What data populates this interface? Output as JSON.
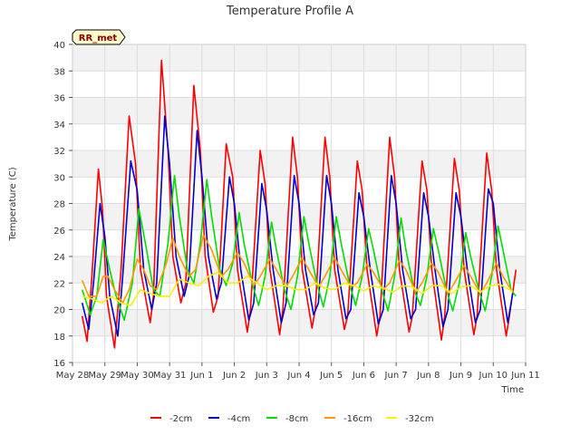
{
  "chart_data": {
    "type": "line",
    "title": "Temperature Profile A",
    "xlabel": "Time",
    "ylabel": "Temperature (C)",
    "badge": "RR_met",
    "ylim": [
      16,
      40
    ],
    "yticks": [
      16,
      18,
      20,
      22,
      24,
      26,
      28,
      30,
      32,
      34,
      36,
      38,
      40
    ],
    "xlim": [
      0,
      14
    ],
    "x_ticks": [
      {
        "x": 0,
        "label": "May 28"
      },
      {
        "x": 1,
        "label": "May 29"
      },
      {
        "x": 2,
        "label": "May 30"
      },
      {
        "x": 3,
        "label": "May 31"
      },
      {
        "x": 4,
        "label": "Jun 1"
      },
      {
        "x": 5,
        "label": "Jun 2"
      },
      {
        "x": 6,
        "label": "Jun 3"
      },
      {
        "x": 7,
        "label": "Jun 4"
      },
      {
        "x": 8,
        "label": "Jun 5"
      },
      {
        "x": 9,
        "label": "Jun 6"
      },
      {
        "x": 10,
        "label": "Jun 7"
      },
      {
        "x": 11,
        "label": "Jun 8"
      },
      {
        "x": 12,
        "label": "Jun 9"
      },
      {
        "x": 13,
        "label": "Jun 10"
      },
      {
        "x": 14,
        "label": "Jun 11"
      }
    ],
    "grid": true,
    "legend_position": "bottom",
    "series": [
      {
        "name": "-2cm",
        "color": "#ff0000",
        "x": [
          0.3,
          0.45,
          0.6,
          0.8,
          0.93,
          1.05,
          1.3,
          1.5,
          1.75,
          1.95,
          2.1,
          2.4,
          2.5,
          2.75,
          2.95,
          3.1,
          3.35,
          3.5,
          3.75,
          3.95,
          4.1,
          4.35,
          4.5,
          4.75,
          4.95,
          5.1,
          5.4,
          5.5,
          5.8,
          5.95,
          6.1,
          6.4,
          6.5,
          6.8,
          6.95,
          7.1,
          7.4,
          7.5,
          7.8,
          7.95,
          8.1,
          8.4,
          8.5,
          8.8,
          8.95,
          9.1,
          9.4,
          9.5,
          9.8,
          9.95,
          10.1,
          10.4,
          10.5,
          10.8,
          10.95,
          11.1,
          11.4,
          11.5,
          11.8,
          11.95,
          12.1,
          12.4,
          12.5,
          12.8,
          12.95,
          13.1,
          13.4,
          13.5,
          13.7,
          13.95,
          14.0
        ],
        "y": [
          19.5,
          17.6,
          22.5,
          30.6,
          27.5,
          21.0,
          17.1,
          23.0,
          34.6,
          31.0,
          23.0,
          19.0,
          21.0,
          38.8,
          32.0,
          24.0,
          20.5,
          22.0,
          36.9,
          32.0,
          24.0,
          19.8,
          21.0,
          32.5,
          30.0,
          23.0,
          18.3,
          20.0,
          32.0,
          29.5,
          23.0,
          18.1,
          20.0,
          33.0,
          30.0,
          23.0,
          18.6,
          20.0,
          33.0,
          30.0,
          23.0,
          18.5,
          19.5,
          31.2,
          29.0,
          23.0,
          18.0,
          19.5,
          33.0,
          30.0,
          23.0,
          18.3,
          19.5,
          31.2,
          29.0,
          23.0,
          17.7,
          19.5,
          31.4,
          29.0,
          23.0,
          18.1,
          19.5,
          31.8,
          29.0,
          23.0,
          18.0,
          19.5,
          23.0,
          null,
          null
        ]
      },
      {
        "name": "-4cm",
        "color": "#0000cc",
        "x": [
          0.3,
          0.5,
          0.65,
          0.85,
          1.0,
          1.15,
          1.4,
          1.55,
          1.8,
          2.0,
          2.2,
          2.45,
          2.6,
          2.85,
          3.0,
          3.2,
          3.45,
          3.6,
          3.85,
          4.0,
          4.2,
          4.45,
          4.6,
          4.85,
          5.0,
          5.2,
          5.45,
          5.6,
          5.85,
          6.0,
          6.2,
          6.45,
          6.6,
          6.85,
          7.0,
          7.2,
          7.45,
          7.6,
          7.85,
          8.0,
          8.2,
          8.45,
          8.6,
          8.85,
          9.0,
          9.2,
          9.45,
          9.6,
          9.85,
          10.0,
          10.2,
          10.45,
          10.6,
          10.85,
          11.0,
          11.2,
          11.45,
          11.6,
          11.85,
          12.0,
          12.2,
          12.45,
          12.6,
          12.85,
          13.0,
          13.2,
          13.45,
          13.6
        ],
        "y": [
          20.5,
          18.5,
          22.0,
          28.0,
          25.5,
          21.0,
          18.0,
          22.5,
          31.2,
          29.0,
          23.0,
          20.0,
          22.0,
          34.6,
          31.0,
          24.0,
          21.0,
          22.5,
          33.5,
          30.0,
          24.0,
          20.8,
          22.0,
          30.0,
          28.0,
          23.0,
          19.2,
          20.5,
          29.5,
          27.5,
          23.0,
          19.0,
          20.5,
          30.1,
          28.0,
          23.0,
          19.6,
          20.5,
          30.1,
          28.0,
          23.0,
          19.3,
          20.0,
          28.8,
          27.0,
          23.0,
          18.9,
          20.0,
          30.1,
          28.0,
          23.0,
          19.3,
          20.0,
          28.8,
          27.0,
          23.0,
          18.7,
          20.0,
          28.8,
          27.0,
          23.0,
          19.0,
          20.0,
          29.1,
          28.0,
          23.0,
          19.0,
          21.2
        ]
      },
      {
        "name": "-8cm",
        "color": "#00dd00",
        "x": [
          0.3,
          0.55,
          0.75,
          0.95,
          1.15,
          1.35,
          1.6,
          1.85,
          2.05,
          2.25,
          2.5,
          2.7,
          2.95,
          3.15,
          3.3,
          3.55,
          3.75,
          3.95,
          4.15,
          4.3,
          4.55,
          4.75,
          4.95,
          5.15,
          5.3,
          5.55,
          5.75,
          5.95,
          6.15,
          6.3,
          6.55,
          6.75,
          6.95,
          7.15,
          7.3,
          7.55,
          7.75,
          7.95,
          8.15,
          8.3,
          8.55,
          8.75,
          8.95,
          9.15,
          9.3,
          9.55,
          9.75,
          9.95,
          10.15,
          10.3,
          10.55,
          10.75,
          10.95,
          11.15,
          11.3,
          11.55,
          11.75,
          11.95,
          12.15,
          12.3,
          12.55,
          12.75,
          12.95,
          13.15,
          13.3,
          13.55,
          13.7
        ],
        "y": [
          21.5,
          19.6,
          21.0,
          25.3,
          23.0,
          21.0,
          19.2,
          22.0,
          27.6,
          25.0,
          21.5,
          21.0,
          25.0,
          30.1,
          27.0,
          23.0,
          22.0,
          25.0,
          29.8,
          27.0,
          23.0,
          21.8,
          23.5,
          27.3,
          25.0,
          22.0,
          20.3,
          22.5,
          26.6,
          24.5,
          21.5,
          20.0,
          22.5,
          27.0,
          25.0,
          22.0,
          20.2,
          22.5,
          27.0,
          25.0,
          22.0,
          20.3,
          22.5,
          26.1,
          24.5,
          21.5,
          19.9,
          22.5,
          26.9,
          24.5,
          21.5,
          20.3,
          22.5,
          26.1,
          24.5,
          21.5,
          19.9,
          22.0,
          25.8,
          24.0,
          21.5,
          19.9,
          22.5,
          26.3,
          24.5,
          21.5,
          21.0
        ]
      },
      {
        "name": "-16cm",
        "color": "#ff9900",
        "x": [
          0.3,
          0.5,
          0.75,
          0.95,
          1.1,
          1.3,
          1.55,
          1.75,
          2.0,
          2.2,
          2.4,
          2.6,
          2.9,
          3.1,
          3.3,
          3.6,
          3.8,
          4.05,
          4.3,
          4.6,
          4.8,
          5.1,
          5.3,
          5.6,
          5.8,
          6.1,
          6.3,
          6.6,
          6.8,
          7.1,
          7.3,
          7.6,
          7.8,
          8.1,
          8.3,
          8.6,
          8.8,
          9.1,
          9.3,
          9.6,
          9.8,
          10.1,
          10.3,
          10.6,
          10.8,
          11.1,
          11.3,
          11.6,
          11.8,
          12.1,
          12.3,
          12.6,
          12.8,
          13.1,
          13.3,
          13.6
        ],
        "y": [
          22.2,
          21.0,
          21.0,
          22.5,
          22.5,
          21.5,
          20.5,
          21.5,
          23.8,
          23.0,
          21.8,
          21.5,
          23.5,
          25.4,
          24.0,
          22.5,
          23.0,
          25.6,
          24.5,
          22.5,
          23.0,
          24.3,
          23.5,
          21.8,
          22.5,
          23.8,
          23.0,
          21.7,
          22.5,
          23.9,
          23.0,
          21.7,
          22.5,
          23.9,
          23.0,
          21.7,
          22.0,
          23.4,
          22.8,
          21.5,
          22.0,
          23.7,
          23.0,
          21.3,
          22.0,
          23.5,
          22.8,
          21.2,
          22.0,
          23.3,
          22.5,
          21.2,
          22.0,
          23.5,
          22.5,
          21.3
        ]
      },
      {
        "name": "-32cm",
        "color": "#ffee00",
        "x": [
          0.3,
          0.6,
          0.9,
          1.2,
          1.5,
          1.8,
          2.1,
          2.4,
          2.7,
          3.0,
          3.3,
          3.6,
          3.9,
          4.2,
          4.5,
          4.8,
          5.1,
          5.4,
          5.7,
          6.0,
          6.3,
          6.6,
          6.9,
          7.2,
          7.5,
          7.8,
          8.1,
          8.4,
          8.7,
          9.0,
          9.3,
          9.6,
          9.9,
          10.2,
          10.5,
          10.8,
          11.1,
          11.4,
          11.7,
          12.0,
          12.3,
          12.6,
          12.9,
          13.2,
          13.5,
          13.6
        ],
        "y": [
          21.0,
          20.8,
          20.5,
          21.0,
          20.5,
          20.3,
          21.5,
          21.2,
          21.0,
          21.0,
          22.3,
          22.0,
          21.8,
          22.5,
          22.8,
          22.0,
          22.0,
          22.5,
          22.0,
          21.5,
          21.8,
          21.8,
          21.5,
          21.5,
          22.0,
          21.6,
          21.5,
          22.0,
          21.8,
          21.4,
          21.8,
          21.6,
          21.3,
          21.8,
          21.7,
          21.2,
          21.8,
          21.8,
          21.2,
          21.7,
          21.8,
          21.3,
          21.8,
          21.9,
          21.5,
          21.4
        ]
      }
    ]
  }
}
